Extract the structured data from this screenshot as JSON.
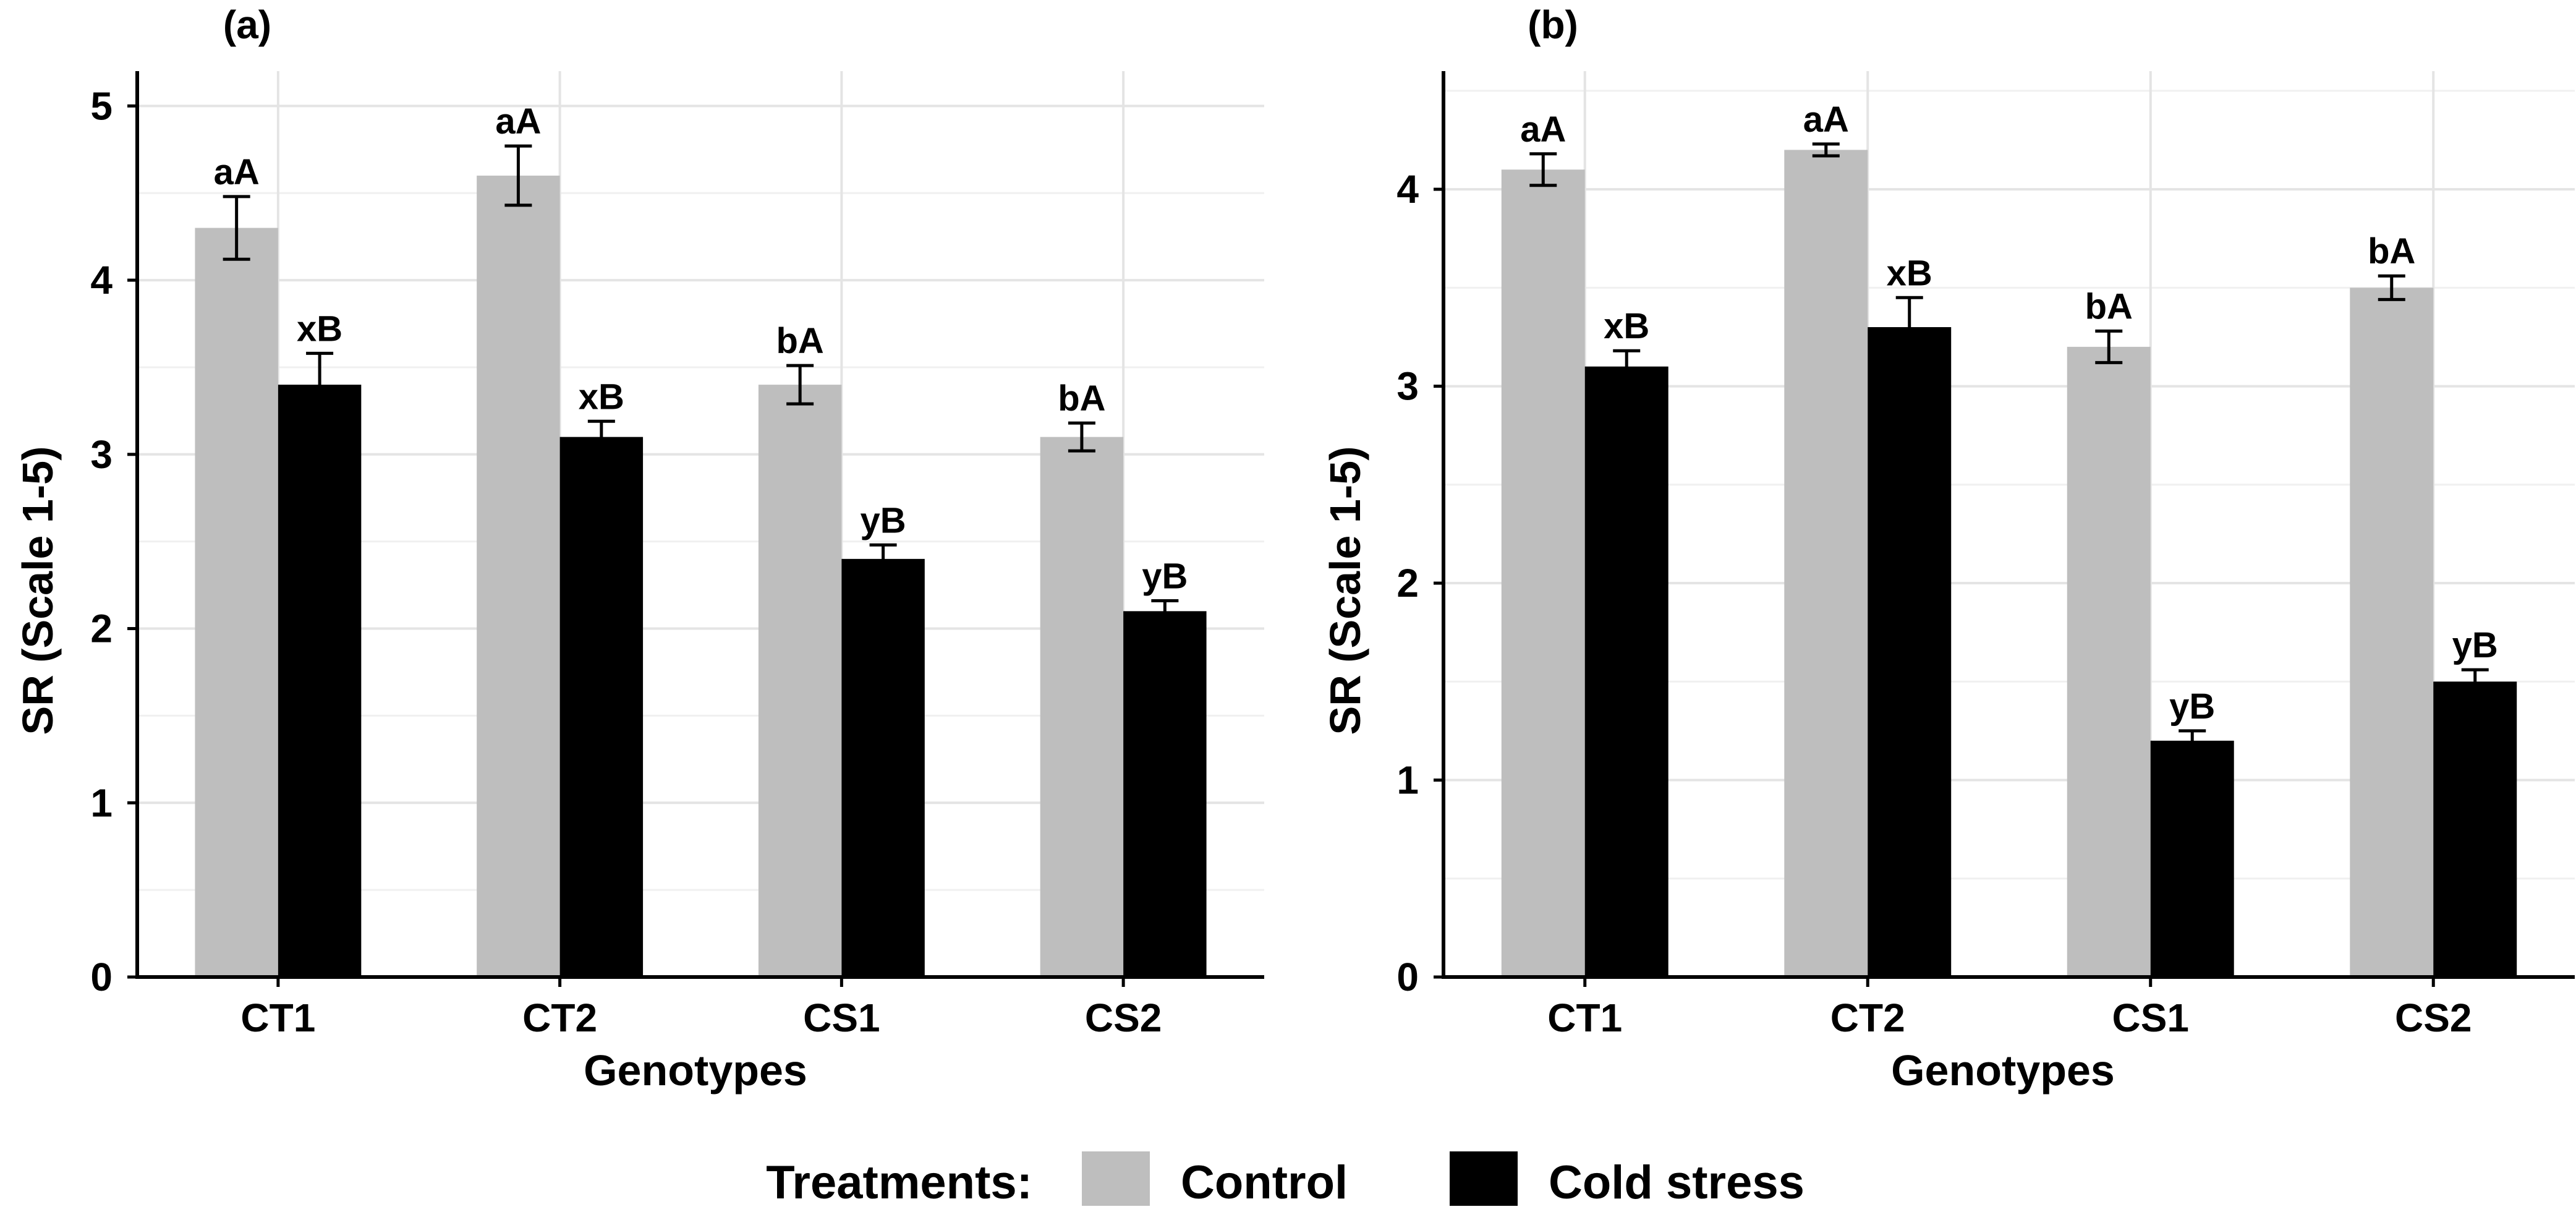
{
  "chart_data": [
    {
      "panel": "(a)",
      "type": "bar",
      "title": "(a)",
      "xlabel": "Genotypes",
      "ylabel": "SR (Scale 1-5)",
      "ylim": [
        0,
        5.2
      ],
      "yticks": [
        0,
        1,
        2,
        3,
        4,
        5
      ],
      "grid": true,
      "categories": [
        "CT1",
        "CT2",
        "CS1",
        "CS2"
      ],
      "series": [
        {
          "name": "Control",
          "color": "#bebebe",
          "values": [
            4.3,
            4.6,
            3.4,
            3.1
          ],
          "errors": [
            0.18,
            0.17,
            0.11,
            0.08
          ],
          "labels": [
            "aA",
            "aA",
            "bA",
            "bA"
          ]
        },
        {
          "name": "Cold stress",
          "color": "#000000",
          "values": [
            3.4,
            3.1,
            2.4,
            2.1
          ],
          "errors": [
            0.18,
            0.09,
            0.08,
            0.06
          ],
          "labels": [
            "xB",
            "xB",
            "yB",
            "yB"
          ]
        }
      ]
    },
    {
      "panel": "(b)",
      "type": "bar",
      "title": "(b)",
      "xlabel": "Genotypes",
      "ylabel": "SR (Scale 1-5)",
      "ylim": [
        0,
        4.6
      ],
      "yticks": [
        0,
        1,
        2,
        3,
        4
      ],
      "grid": true,
      "categories": [
        "CT1",
        "CT2",
        "CS1",
        "CS2"
      ],
      "series": [
        {
          "name": "Control",
          "color": "#bebebe",
          "values": [
            4.1,
            4.2,
            3.2,
            3.5
          ],
          "errors": [
            0.08,
            0.03,
            0.08,
            0.06
          ],
          "labels": [
            "aA",
            "aA",
            "bA",
            "bA"
          ]
        },
        {
          "name": "Cold stress",
          "color": "#000000",
          "values": [
            3.1,
            3.3,
            1.2,
            1.5
          ],
          "errors": [
            0.08,
            0.15,
            0.05,
            0.06
          ],
          "labels": [
            "xB",
            "xB",
            "yB",
            "yB"
          ]
        }
      ]
    }
  ],
  "legend": {
    "title": "Treatments:",
    "position": "bottom",
    "items": [
      {
        "label": "Control",
        "color": "#bebebe"
      },
      {
        "label": "Cold stress",
        "color": "#000000"
      }
    ]
  }
}
